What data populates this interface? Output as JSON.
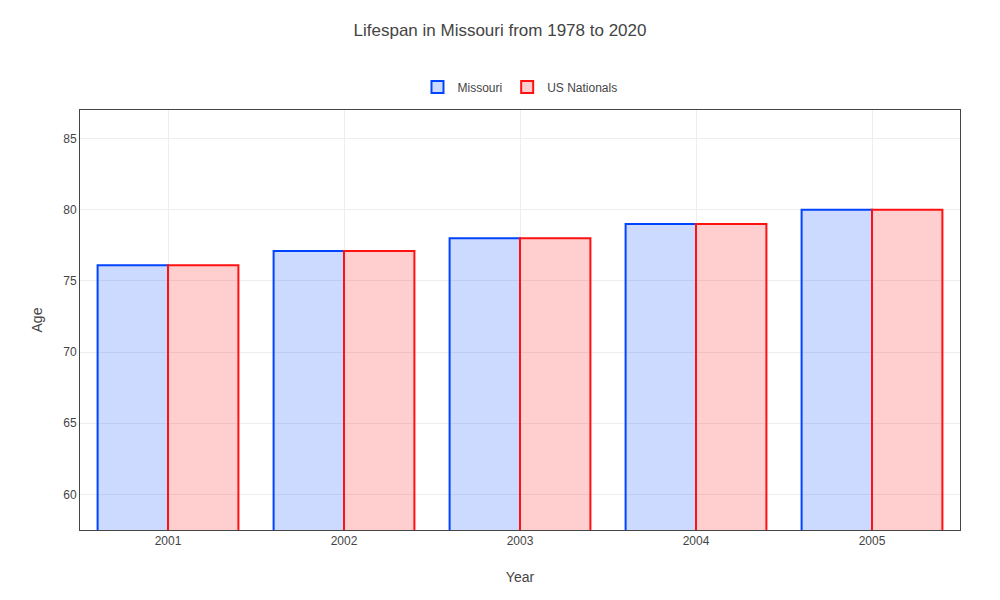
{
  "chart_data": {
    "type": "bar",
    "title": "Lifespan in Missouri from 1978 to 2020",
    "xlabel": "Year",
    "ylabel": "Age",
    "categories": [
      "2001",
      "2002",
      "2003",
      "2004",
      "2005"
    ],
    "series": [
      {
        "name": "Missouri",
        "color": "#0044ff",
        "values": [
          76.1,
          77.1,
          78.0,
          79.0,
          80.0
        ]
      },
      {
        "name": "US Nationals",
        "color": "#ff1111",
        "values": [
          76.1,
          77.1,
          78.0,
          79.0,
          80.0
        ]
      }
    ],
    "ylim": [
      57.5,
      87
    ],
    "yticks": [
      60,
      65,
      70,
      75,
      80,
      85
    ],
    "grid": true,
    "legend": "top"
  }
}
